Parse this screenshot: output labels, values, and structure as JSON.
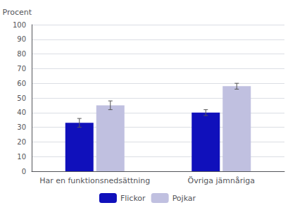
{
  "chart_data": {
    "type": "bar",
    "y_label": "Procent",
    "categories": [
      "Har en funktionsnedsättning",
      "Övriga jämnåriga"
    ],
    "series": [
      {
        "name": "Flickor",
        "color": "#1010BB",
        "values": [
          33,
          40
        ],
        "errors": [
          3,
          2
        ]
      },
      {
        "name": "Pojkar",
        "color": "#C0C0E0",
        "values": [
          45,
          58
        ],
        "errors": [
          3,
          2
        ]
      }
    ],
    "ylim": [
      0,
      100
    ],
    "yticks": [
      0,
      10,
      20,
      30,
      40,
      50,
      60,
      70,
      80,
      90,
      100
    ],
    "grid": true,
    "legend": "bottom"
  }
}
